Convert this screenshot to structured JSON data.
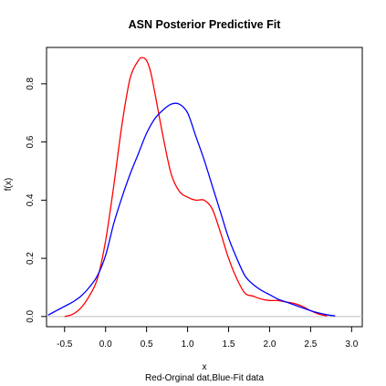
{
  "chart_data": {
    "type": "line",
    "title": "ASN Posterior Predictive Fit",
    "xlabel": "x",
    "ylabel": "f(x)",
    "subtitle": "Red-Orginal dat,Blue-Fit data",
    "xlim": [
      -0.72,
      3.13
    ],
    "ylim": [
      -0.035,
      0.925
    ],
    "x_ticks": [
      -0.5,
      0.0,
      0.5,
      1.0,
      1.5,
      2.0,
      2.5,
      3.0
    ],
    "x_tick_labels": [
      "-0.5",
      "0.0",
      "0.5",
      "1.0",
      "1.5",
      "2.0",
      "2.5",
      "3.0"
    ],
    "y_ticks": [
      0.0,
      0.2,
      0.4,
      0.6,
      0.8
    ],
    "y_tick_labels": [
      "0.0",
      "0.2",
      "0.4",
      "0.6",
      "0.8"
    ],
    "reference_line": {
      "y": 0,
      "color": "#bebebe"
    },
    "grid": false,
    "legend": "none",
    "series": [
      {
        "color": "#ff0000",
        "x": [
          -0.5,
          -0.4,
          -0.3,
          -0.2,
          -0.1,
          0.0,
          0.1,
          0.2,
          0.3,
          0.4,
          0.45,
          0.5,
          0.55,
          0.6,
          0.7,
          0.8,
          0.9,
          1.0,
          1.1,
          1.2,
          1.3,
          1.4,
          1.5,
          1.6,
          1.7,
          1.8,
          1.9,
          2.0,
          2.1,
          2.2,
          2.3,
          2.4,
          2.5,
          2.6,
          2.7
        ],
        "y": [
          0.0,
          0.008,
          0.03,
          0.07,
          0.13,
          0.26,
          0.45,
          0.66,
          0.82,
          0.88,
          0.89,
          0.88,
          0.84,
          0.77,
          0.62,
          0.49,
          0.43,
          0.41,
          0.4,
          0.4,
          0.37,
          0.29,
          0.2,
          0.13,
          0.08,
          0.07,
          0.06,
          0.055,
          0.055,
          0.05,
          0.045,
          0.035,
          0.02,
          0.008,
          0.002
        ]
      },
      {
        "color": "#0000ff",
        "x": [
          -0.7,
          -0.6,
          -0.5,
          -0.4,
          -0.3,
          -0.2,
          -0.1,
          0.0,
          0.1,
          0.2,
          0.3,
          0.4,
          0.5,
          0.6,
          0.7,
          0.8,
          0.9,
          1.0,
          1.1,
          1.2,
          1.3,
          1.4,
          1.5,
          1.6,
          1.7,
          1.8,
          1.9,
          2.0,
          2.1,
          2.2,
          2.3,
          2.4,
          2.5,
          2.6,
          2.7,
          2.8
        ],
        "y": [
          0.005,
          0.02,
          0.035,
          0.05,
          0.07,
          0.1,
          0.14,
          0.21,
          0.32,
          0.41,
          0.49,
          0.56,
          0.63,
          0.68,
          0.71,
          0.73,
          0.73,
          0.7,
          0.62,
          0.54,
          0.45,
          0.36,
          0.27,
          0.2,
          0.14,
          0.11,
          0.09,
          0.075,
          0.06,
          0.05,
          0.04,
          0.03,
          0.02,
          0.012,
          0.006,
          0.002
        ]
      }
    ]
  }
}
